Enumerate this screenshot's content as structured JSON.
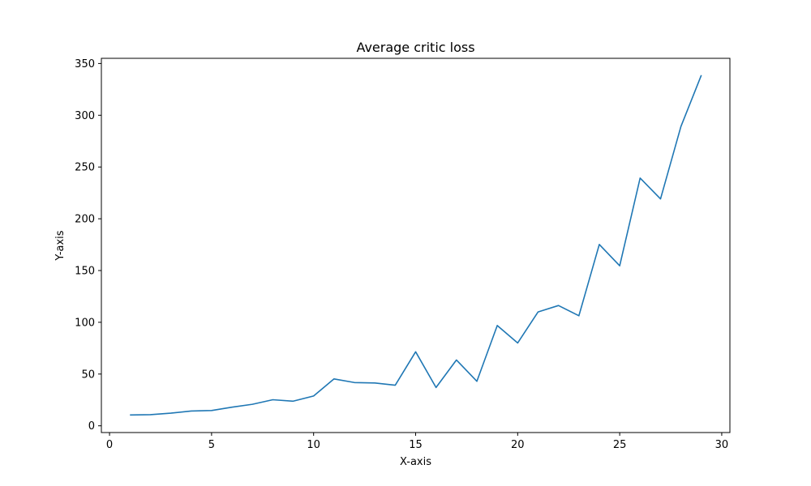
{
  "chart_data": {
    "type": "line",
    "title": "Average critic loss",
    "xlabel": "X-axis",
    "ylabel": "Y-axis",
    "xlim": [
      -0.4,
      30.4
    ],
    "ylim": [
      -6.5,
      355
    ],
    "xticks": [
      0,
      5,
      10,
      15,
      20,
      25,
      30
    ],
    "yticks": [
      0,
      50,
      100,
      150,
      200,
      250,
      300,
      350
    ],
    "grid": false,
    "color": "#1f77b4",
    "x": [
      1,
      2,
      3,
      4,
      5,
      6,
      7,
      8,
      9,
      10,
      11,
      12,
      13,
      14,
      15,
      16,
      17,
      18,
      19,
      20,
      21,
      22,
      23,
      24,
      25,
      26,
      27,
      28,
      29
    ],
    "y": [
      10.5,
      10.8,
      12.2,
      14.3,
      14.8,
      18.0,
      20.8,
      25.2,
      23.8,
      28.8,
      45.3,
      41.8,
      41.4,
      39.2,
      71.5,
      37.0,
      63.6,
      43.0,
      96.9,
      80.0,
      110.0,
      116.2,
      106.3,
      175.2,
      154.6,
      239.3,
      219.2,
      289.1,
      338.7
    ]
  }
}
